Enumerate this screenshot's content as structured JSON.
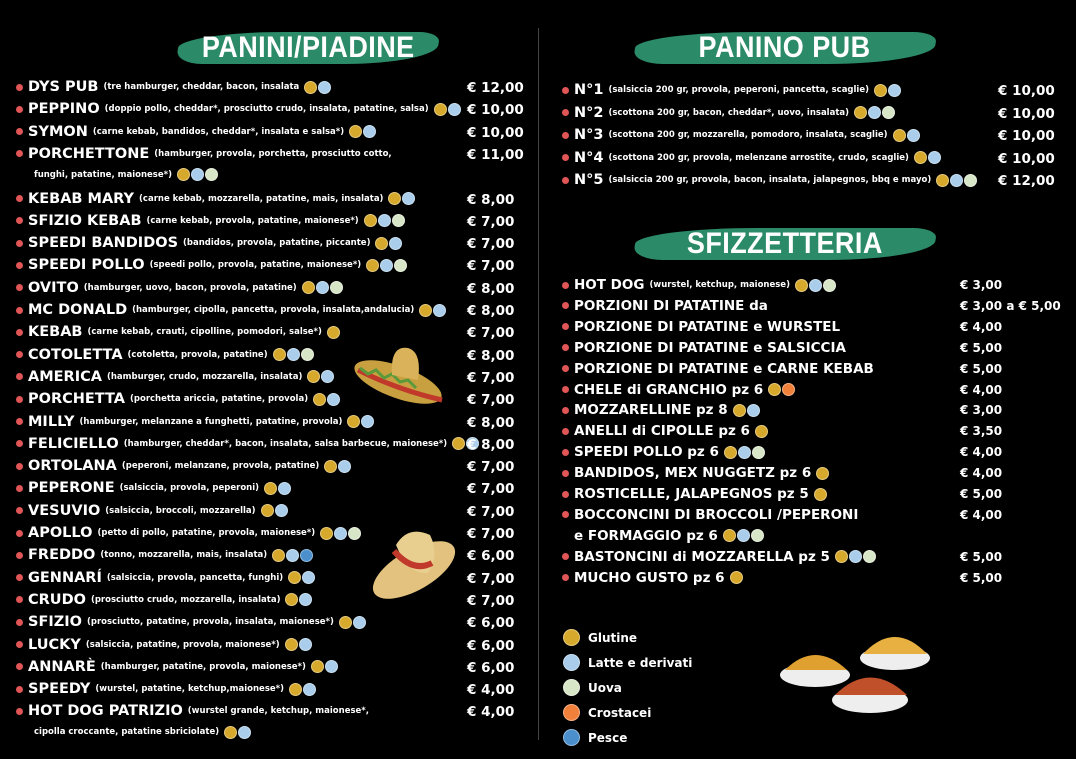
{
  "allergen_colors": {
    "G": "#d6a92c",
    "L": "#a9cdea",
    "U": "#d8e6c8",
    "C": "#f0803a",
    "P": "#4b8fcc"
  },
  "sections": {
    "panini": {
      "title": "PANINI/PIADINE"
    },
    "pub": {
      "title": "PANINO PUB"
    },
    "sfizz": {
      "title": "SFIZZETTERIA"
    }
  },
  "panini_items": [
    {
      "name": "DYS PUB",
      "desc": "(tre hamburger, cheddar, bacon, insalata",
      "icons": [
        "G",
        "L"
      ],
      "price": "€ 12,00"
    },
    {
      "name": "PEPPINO",
      "desc": "(doppio pollo, cheddar*, prosciutto crudo, insalata, patatine, salsa)",
      "icons": [
        "G",
        "L"
      ],
      "price": "€ 10,00"
    },
    {
      "name": "SYMON",
      "desc": "(carne kebab, bandidos, cheddar*, insalata e salsa*)",
      "icons": [
        "G",
        "L"
      ],
      "price": "€ 10,00"
    },
    {
      "name": "PORCHETTONE",
      "desc": "(hamburger, provola, porchetta, prosciutto cotto,",
      "cont": "funghi, patatine, maionese*)",
      "icons": [
        "G",
        "L",
        "U"
      ],
      "price": "€ 11,00"
    },
    {
      "name": "KEBAB MARY",
      "desc": "(carne kebab, mozzarella, patatine, mais, insalata)",
      "icons": [
        "G",
        "L"
      ],
      "price": "€ 8,00"
    },
    {
      "name": "SFIZIO KEBAB",
      "desc": "(carne kebab, provola, patatine, maionese*)",
      "icons": [
        "G",
        "L",
        "U"
      ],
      "price": "€ 7,00"
    },
    {
      "name": "SPEEDI BANDIDOS",
      "desc": "(bandidos, provola, patatine, piccante)",
      "icons": [
        "G",
        "L"
      ],
      "price": "€ 7,00"
    },
    {
      "name": "SPEEDI POLLO",
      "desc": "(speedi pollo, provola, patatine, maionese*)",
      "icons": [
        "G",
        "L",
        "U"
      ],
      "price": "€ 7,00"
    },
    {
      "name": "OVITO",
      "desc": "(hamburger, uovo, bacon, provola, patatine)",
      "icons": [
        "G",
        "L",
        "U"
      ],
      "price": "€ 8,00"
    },
    {
      "name": "MC DONALD",
      "desc": "(hamburger, cipolla, pancetta, provola, insalata,andalucia)",
      "icons": [
        "G",
        "L"
      ],
      "price": "€ 8,00"
    },
    {
      "name": "KEBAB",
      "desc": "(carne kebab, crauti, cipolline, pomodori, salse*)",
      "icons": [
        "G"
      ],
      "price": "€ 7,00"
    },
    {
      "name": "COTOLETTA",
      "desc": "(cotoletta, provola, patatine)",
      "icons": [
        "G",
        "L",
        "U"
      ],
      "price": "€ 8,00"
    },
    {
      "name": "AMERICA",
      "desc": "(hamburger, crudo, mozzarella, insalata)",
      "icons": [
        "G",
        "L"
      ],
      "price": "€ 7,00"
    },
    {
      "name": "PORCHETTA",
      "desc": "(porchetta ariccia, patatine, provola)",
      "icons": [
        "G",
        "L"
      ],
      "price": "€ 7,00"
    },
    {
      "name": "MILLY",
      "desc": "(hamburger, melanzane a funghetti, patatine, provola)",
      "icons": [
        "G",
        "L"
      ],
      "price": "€ 8,00"
    },
    {
      "name": "FELICIELLO",
      "desc": "(hamburger, cheddar*, bacon, insalata, salsa barbecue, maionese*)",
      "icons": [
        "G",
        "L"
      ],
      "price": "€ 8,00"
    },
    {
      "name": "ORTOLANA",
      "desc": "(peperoni, melanzane, provola, patatine)",
      "icons": [
        "G",
        "L"
      ],
      "price": "€ 7,00"
    },
    {
      "name": "PEPERONE",
      "desc": "(salsiccia, provola, peperoni)",
      "icons": [
        "G",
        "L"
      ],
      "price": "€ 7,00"
    },
    {
      "name": "VESUVIO",
      "desc": "(salsiccia, broccoli, mozzarella)",
      "icons": [
        "G",
        "L"
      ],
      "price": "€ 7,00"
    },
    {
      "name": "APOLLO",
      "desc": "(petto di pollo, patatine, provola, maionese*)",
      "icons": [
        "G",
        "L",
        "U"
      ],
      "price": "€ 7,00"
    },
    {
      "name": "FREDDO",
      "desc": "(tonno, mozzarella, mais, insalata)",
      "icons": [
        "G",
        "L",
        "P"
      ],
      "price": "€ 6,00"
    },
    {
      "name": "GENNARÍ",
      "desc": "(salsiccia, provola, pancetta, funghi)",
      "icons": [
        "G",
        "L"
      ],
      "price": "€ 7,00"
    },
    {
      "name": "CRUDO",
      "desc": "(prosciutto crudo, mozzarella, insalata)",
      "icons": [
        "G",
        "L"
      ],
      "price": "€ 7,00"
    },
    {
      "name": "SFIZIO",
      "desc": "(prosciutto, patatine, provola, insalata, maionese*)",
      "icons": [
        "G",
        "L"
      ],
      "price": "€ 6,00"
    },
    {
      "name": "LUCKY",
      "desc": "(salsiccia, patatine, provola, maionese*)",
      "icons": [
        "G",
        "L"
      ],
      "price": "€ 6,00"
    },
    {
      "name": "ANNARÈ",
      "desc": "(hamburger, patatine, provola, maionese*)",
      "icons": [
        "G",
        "L"
      ],
      "price": "€ 6,00"
    },
    {
      "name": "SPEEDY",
      "desc": "(wurstel, patatine, ketchup,maionese*)",
      "icons": [
        "G",
        "L"
      ],
      "price": "€ 4,00"
    },
    {
      "name": "HOT DOG PATRIZIO",
      "desc": "(wurstel grande, ketchup, maionese*,",
      "cont": "cipolla croccante, patatine sbriciolate)",
      "icons": [
        "G",
        "L"
      ],
      "price": "€ 4,00"
    }
  ],
  "pub_items": [
    {
      "name": "N°1",
      "desc": "(salsiccia 200 gr, provola, peperoni,  pancetta, scaglie)",
      "icons": [
        "G",
        "L"
      ],
      "price": "€ 10,00"
    },
    {
      "name": "N°2",
      "desc": "(scottona 200 gr, bacon, cheddar*, uovo, insalata)",
      "icons": [
        "G",
        "L",
        "U"
      ],
      "price": "€ 10,00"
    },
    {
      "name": "N°3",
      "desc": "(scottona 200 gr, mozzarella, pomodoro, insalata, scaglie)",
      "icons": [
        "G",
        "L"
      ],
      "price": "€ 10,00"
    },
    {
      "name": "N°4",
      "desc": "(scottona 200 gr, provola, melenzane arrostite, crudo, scaglie)",
      "icons": [
        "G",
        "L"
      ],
      "price": "€ 10,00"
    },
    {
      "name": "N°5",
      "desc": "(salsiccia 200 gr, provola, bacon, insalata, jalapegnos, bbq e mayo)",
      "icons": [
        "G",
        "L",
        "U"
      ],
      "price": "€ 12,00"
    }
  ],
  "sfizz_items": [
    {
      "name": "HOT DOG",
      "desc": "(wurstel, ketchup, maionese)",
      "icons": [
        "G",
        "L",
        "U"
      ],
      "price": "€ 3,00"
    },
    {
      "name": "PORZIONI DI PATATINE da",
      "icons": [],
      "price": "€ 3,00 a € 5,00"
    },
    {
      "name": "PORZIONE DI PATATINE e WURSTEL",
      "icons": [],
      "price": "€ 4,00"
    },
    {
      "name": "PORZIONE DI PATATINE e SALSICCIA",
      "icons": [],
      "price": "€ 5,00"
    },
    {
      "name": "PORZIONE DI PATATINE e CARNE KEBAB",
      "icons": [],
      "price": "€ 5,00"
    },
    {
      "name": "CHELE di GRANCHIO pz 6",
      "icons": [
        "G",
        "C"
      ],
      "price": "€ 4,00"
    },
    {
      "name": "MOZZARELLINE pz 8",
      "icons": [
        "G",
        "L"
      ],
      "price": "€ 3,00"
    },
    {
      "name": "ANELLI di CIPOLLE pz 6",
      "icons": [
        "G"
      ],
      "price": "€ 3,50"
    },
    {
      "name": "SPEEDI POLLO  pz 6",
      "icons": [
        "G",
        "L",
        "U"
      ],
      "price": "€ 4,00"
    },
    {
      "name": "BANDIDOS, MEX NUGGETZ pz 6",
      "icons": [
        "G"
      ],
      "price": "€ 4,00"
    },
    {
      "name": "ROSTICELLE, JALAPEGNOS pz 5",
      "icons": [
        "G"
      ],
      "price": "€ 5,00"
    },
    {
      "name": "BOCCONCINI DI BROCCOLI /PEPERONI",
      "cont": "e FORMAGGIO pz 6",
      "icons": [
        "G",
        "L",
        "U"
      ],
      "price": "€ 4,00"
    },
    {
      "name": "BASTONCINI di MOZZARELLA pz 5",
      "icons": [
        "G",
        "L",
        "U"
      ],
      "price": "€ 5,00"
    },
    {
      "name": "MUCHO GUSTO pz 6",
      "icons": [
        "G"
      ],
      "price": "€ 5,00"
    }
  ],
  "legend": [
    {
      "code": "G",
      "label": "Glutine"
    },
    {
      "code": "L",
      "label": "Latte e derivati"
    },
    {
      "code": "U",
      "label": "Uova"
    },
    {
      "code": "C",
      "label": "Crostacei"
    },
    {
      "code": "P",
      "label": "Pesce"
    }
  ]
}
